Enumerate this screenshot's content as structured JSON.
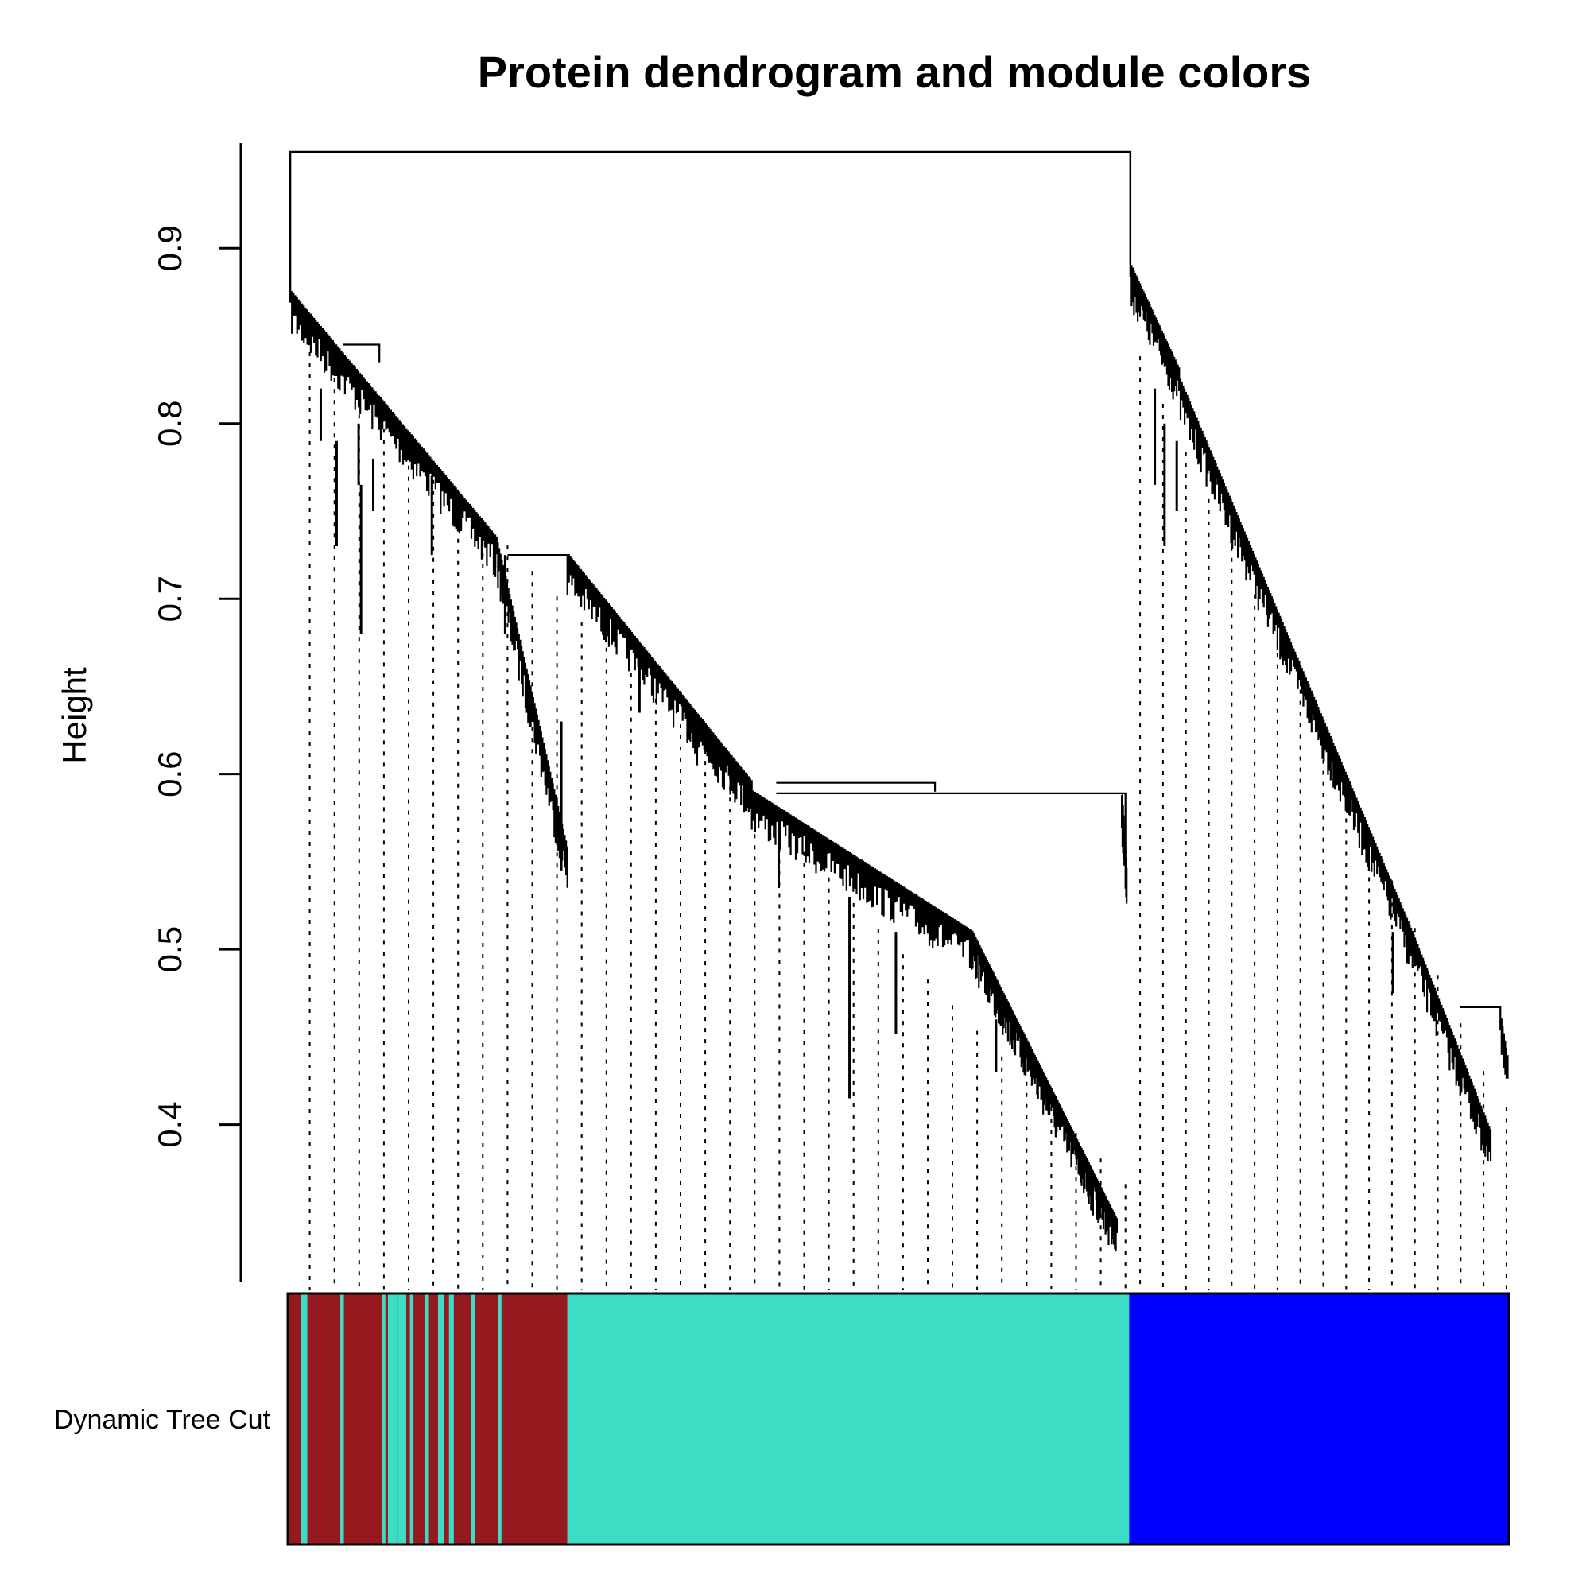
{
  "chart_data": {
    "type": "dendrogram",
    "title": "Protein dendrogram and module colors",
    "ylabel": "Height",
    "xlabel": "",
    "ylim": [
      0.31,
      0.96
    ],
    "yticks": [
      "0.4",
      "0.5",
      "0.6",
      "0.7",
      "0.8",
      "0.9"
    ],
    "root_height": 0.955,
    "branches": [
      {
        "name": "left",
        "start_height": 0.875,
        "end_height": 0.345
      },
      {
        "name": "right",
        "start_height": 0.89,
        "end_height": 0.395
      }
    ],
    "color_row": {
      "label": "Dynamic Tree Cut",
      "modules": [
        {
          "color": "#95191f",
          "extent": [
            0.0,
            0.229
          ]
        },
        {
          "color": "#3cdcc5",
          "extent": [
            0.229,
            0.689
          ]
        },
        {
          "color": "#0000ff",
          "extent": [
            0.689,
            1.0
          ]
        }
      ],
      "interleaved_region": {
        "extent": [
          0.0,
          0.175
        ],
        "colors": [
          "#3cdcc5",
          "#95191f"
        ]
      }
    }
  }
}
